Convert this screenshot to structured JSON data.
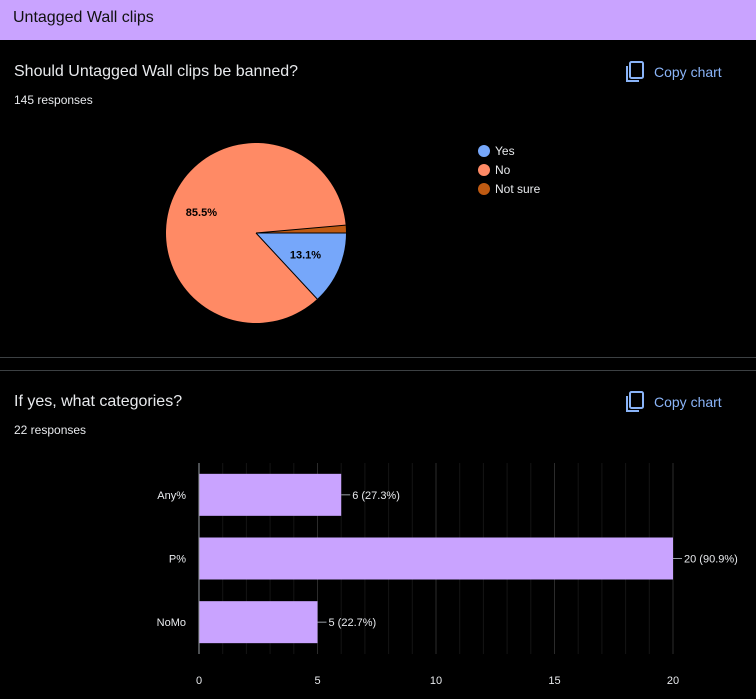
{
  "header": {
    "title": "Untagged Wall clips"
  },
  "questions": [
    {
      "title": "Should Untagged Wall clips be banned?",
      "responses": "145 responses",
      "copy_label": "Copy chart"
    },
    {
      "title": "If yes, what categories?",
      "responses": "22 responses",
      "copy_label": "Copy chart"
    }
  ],
  "chart_data": [
    {
      "type": "pie",
      "slices": [
        {
          "label": "Yes",
          "percent": 13.1,
          "color": "#76a7fa",
          "data_label": "13.1%"
        },
        {
          "label": "No",
          "percent": 85.5,
          "color": "#ff8a65",
          "data_label": "85.5%"
        },
        {
          "label": "Not sure",
          "percent": 1.4,
          "color": "#bf5a12",
          "data_label": ""
        }
      ],
      "legend_position": "right"
    },
    {
      "type": "bar",
      "orientation": "horizontal",
      "categories": [
        "Any%",
        "P%",
        "NoMo"
      ],
      "values": [
        6,
        20,
        5
      ],
      "data_labels": [
        "6 (27.3%)",
        "20 (90.9%)",
        "5 (22.7%)"
      ],
      "xlim": [
        0,
        20
      ],
      "x_ticks": [
        "0",
        "5",
        "10",
        "15",
        "20"
      ],
      "bar_color": "#c9a3ff",
      "grid": true
    }
  ]
}
